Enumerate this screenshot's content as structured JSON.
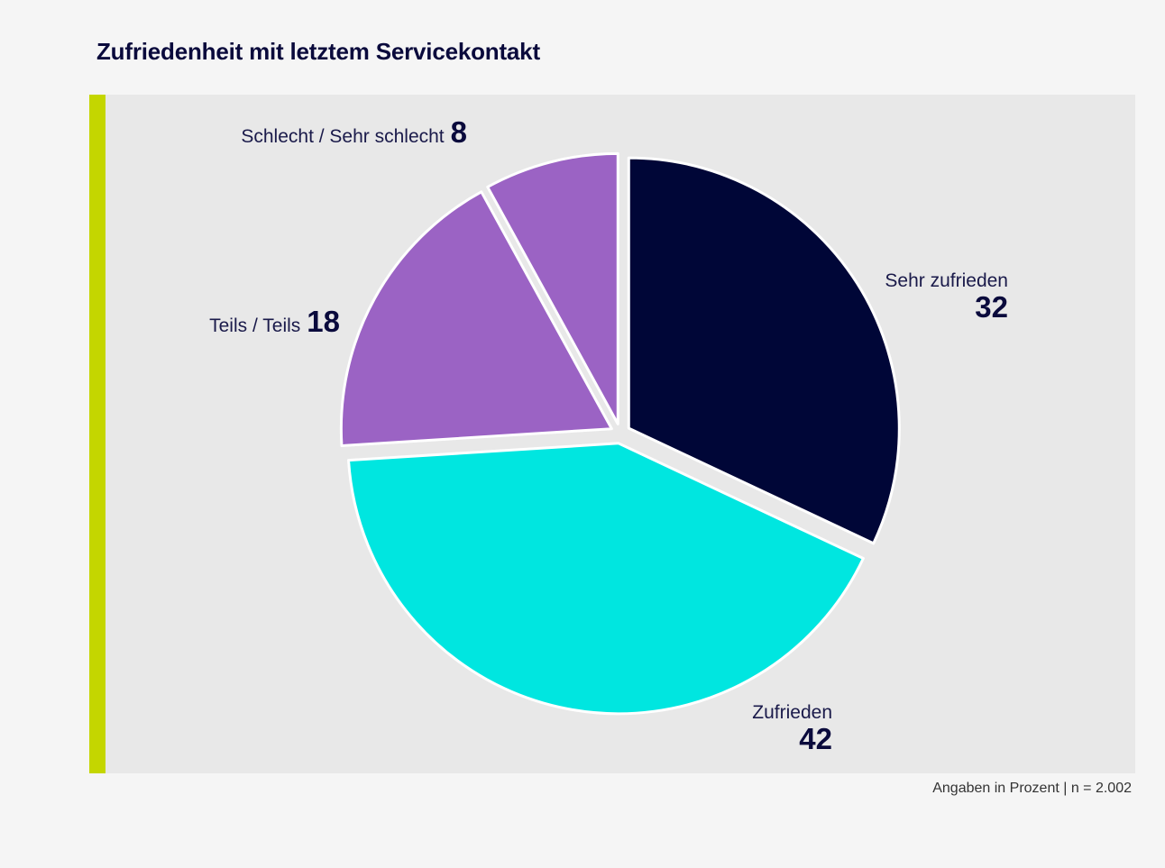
{
  "colors": {
    "background": "#f5f5f5",
    "panel": "#e8e8e8",
    "accent": "#c4d600",
    "title_text": "#0a0a3c",
    "label_text": "#1a1a4a"
  },
  "chart_data": {
    "type": "pie",
    "title": "Zufriedenheit mit letztem Servicekontakt",
    "unit": "Angaben in Prozent",
    "footnote": "Angaben in Prozent | n = 2.002",
    "slices": [
      {
        "label": "Sehr zufrieden",
        "value": 32,
        "color": "#000637"
      },
      {
        "label": "Zufrieden",
        "value": 42,
        "color": "#00e6e0"
      },
      {
        "label": "Teils / Teils",
        "value": 18,
        "color": "#9b63c4"
      },
      {
        "label": "Schlecht / Sehr schlecht",
        "value": 8,
        "color": "#9b63c4"
      }
    ]
  }
}
